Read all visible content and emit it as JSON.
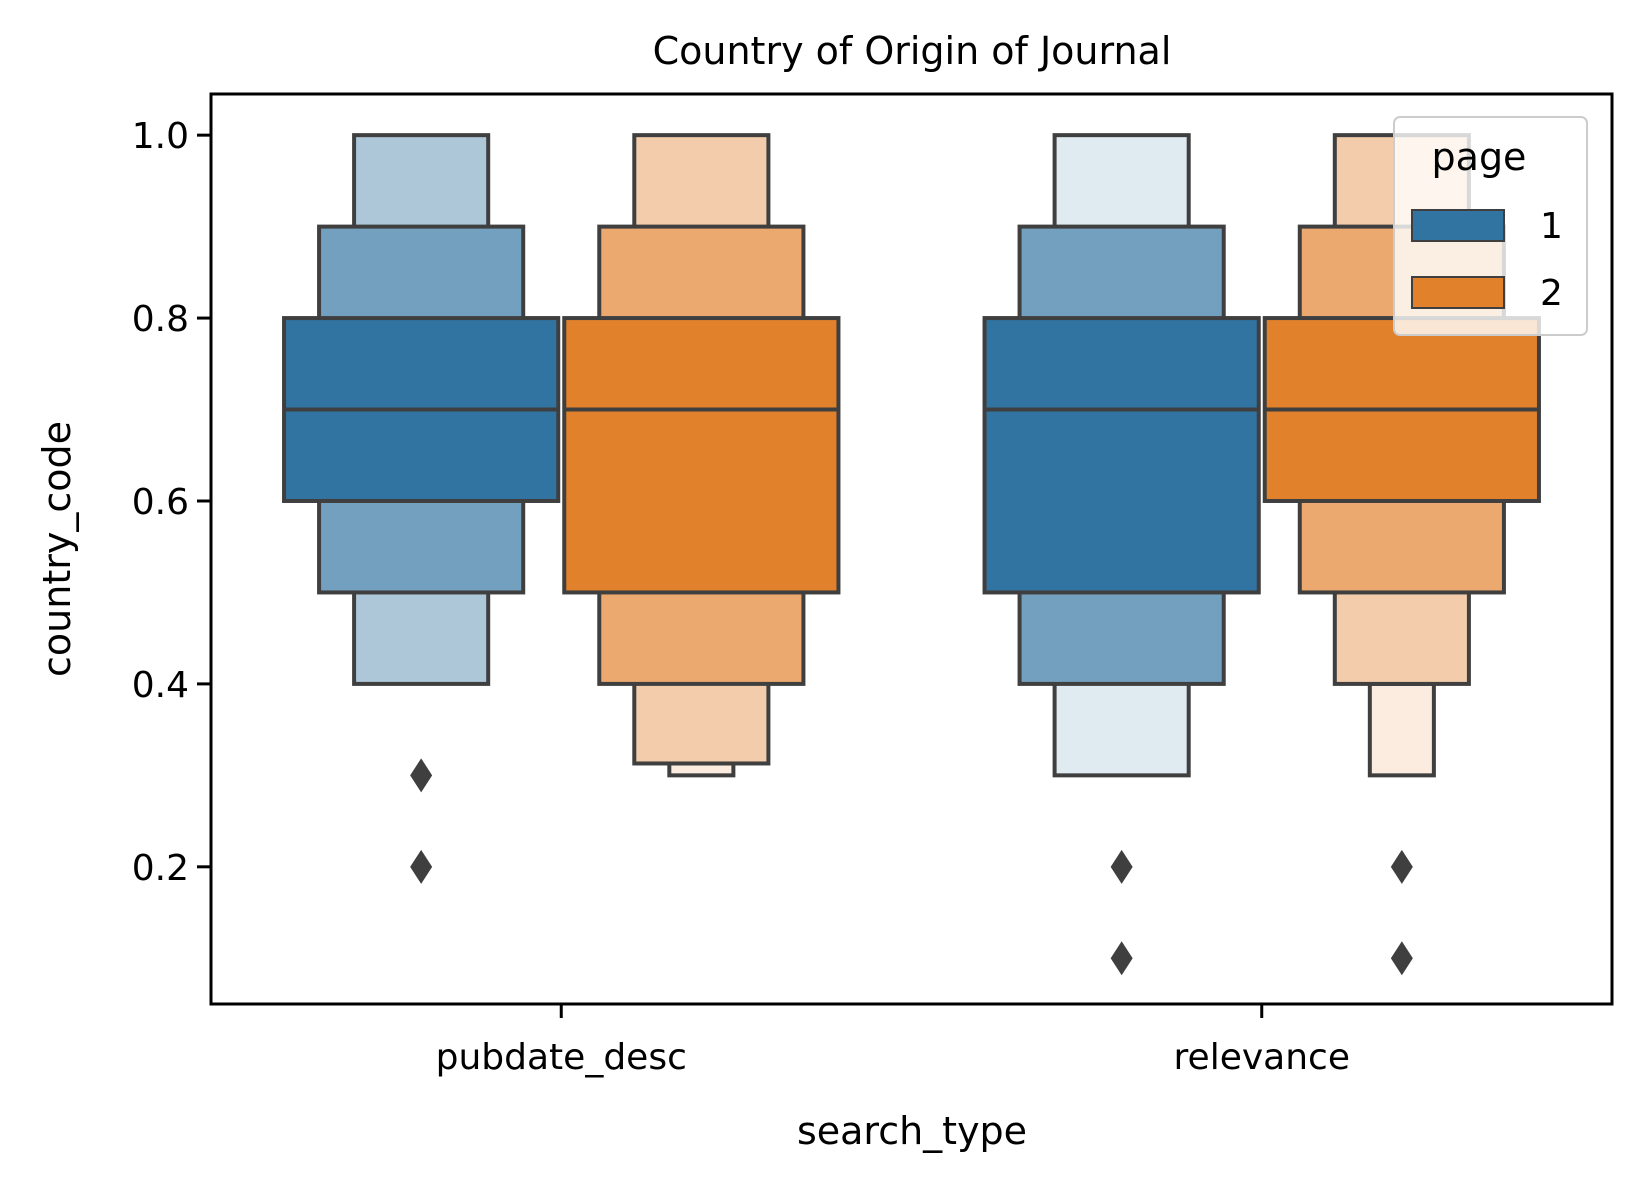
{
  "chart_data": {
    "type": "boxen",
    "title": "Country of Origin of Journal",
    "xlabel": "search_type",
    "ylabel": "country_code",
    "categories": [
      "pubdate_desc",
      "relevance"
    ],
    "yticks": [
      "0.2",
      "0.4",
      "0.6",
      "0.8",
      "1.0"
    ],
    "ylim": [
      0.05,
      1.045
    ],
    "grid": false,
    "legend": {
      "title": "page",
      "position": "top-right",
      "entries": [
        {
          "label": "1",
          "color": "#3274a1"
        },
        {
          "label": "2",
          "color": "#e1812c"
        }
      ]
    },
    "series": [
      {
        "name": "1",
        "color": "#3274a1",
        "groups": [
          {
            "category": "pubdate_desc",
            "median": 0.7,
            "boxes": [
              {
                "lo": 0.6,
                "hi": 0.8,
                "shade": 1.0
              },
              {
                "lo": 0.5,
                "hi": 0.9,
                "shade": 0.68
              },
              {
                "lo": 0.4,
                "hi": 1.0,
                "shade": 0.4,
                "lo_label_note": ""
              }
            ],
            "outliers": [
              0.3,
              0.2
            ]
          },
          {
            "category": "relevance",
            "median": 0.7,
            "boxes": [
              {
                "lo": 0.5,
                "hi": 0.8,
                "shade": 1.0
              },
              {
                "lo": 0.4,
                "hi": 0.9,
                "shade": 0.68
              },
              {
                "lo": 0.3,
                "hi": 1.0,
                "shade": 0.15
              }
            ],
            "outliers": [
              0.2,
              0.1
            ]
          }
        ]
      },
      {
        "name": "2",
        "color": "#e1812c",
        "groups": [
          {
            "category": "pubdate_desc",
            "median": 0.7,
            "boxes": [
              {
                "lo": 0.5,
                "hi": 0.8,
                "shade": 1.0
              },
              {
                "lo": 0.4,
                "hi": 0.9,
                "shade": 0.68
              },
              {
                "lo": 0.313,
                "hi": 1.0,
                "shade": 0.4
              },
              {
                "lo": 0.3,
                "hi": 0.313,
                "shade": 0.15
              }
            ],
            "outliers": []
          },
          {
            "category": "relevance",
            "median": 0.7,
            "boxes": [
              {
                "lo": 0.6,
                "hi": 0.8,
                "shade": 1.0
              },
              {
                "lo": 0.5,
                "hi": 0.9,
                "shade": 0.68
              },
              {
                "lo": 0.4,
                "hi": 1.0,
                "shade": 0.4
              },
              {
                "lo": 0.3,
                "hi": 0.4,
                "shade": 0.15
              }
            ],
            "outliers": [
              0.2,
              0.1
            ]
          }
        ]
      }
    ]
  }
}
